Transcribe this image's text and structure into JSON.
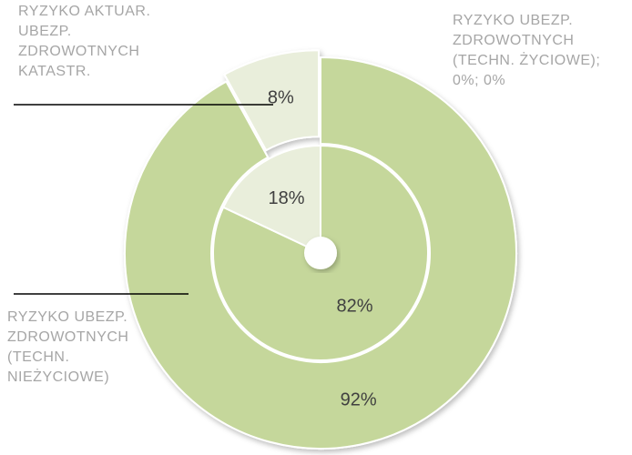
{
  "chart_data": {
    "type": "donut",
    "categories": [
      "RYZYKO UBEZP. ZDROWOTNYCH (TECHN. NIEŻYCIOWE)",
      "RYZYKO AKTUAR. UBEZP. ZDROWOTNYCH KATASTR.",
      "RYZYKO UBEZP. ZDROWOTNYCH (TECHN. ŻYCIOWE); 0%; 0%"
    ],
    "colors": [
      "#c5d79b",
      "#e9eedb",
      "#b0c4de"
    ],
    "series": [
      {
        "values": [
          92,
          8,
          0
        ],
        "value_labels": [
          "92%",
          "8%",
          "0%"
        ]
      },
      {
        "values": [
          82,
          18,
          0
        ],
        "value_labels": [
          "82%",
          "18%",
          "0%"
        ]
      }
    ]
  }
}
